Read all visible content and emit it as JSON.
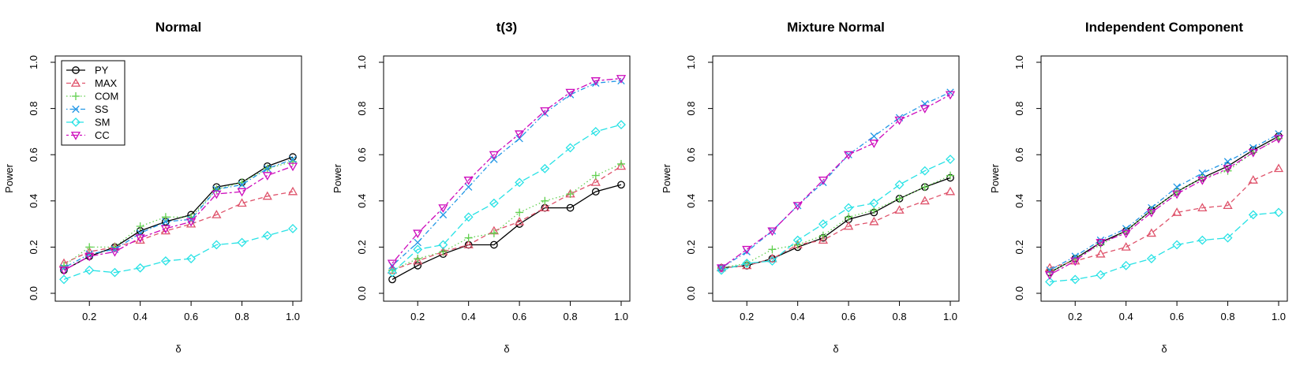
{
  "chart_data": [
    {
      "type": "line",
      "title": "Normal",
      "xlabel": "δ",
      "ylabel": "Power",
      "xlim": [
        0.1,
        1.0
      ],
      "ylim": [
        0.0,
        1.0
      ],
      "x_ticks": [
        "0.2",
        "0.4",
        "0.6",
        "0.8",
        "1.0"
      ],
      "y_ticks": [
        "0.0",
        "0.2",
        "0.4",
        "0.6",
        "0.8",
        "1.0"
      ],
      "x": [
        0.1,
        0.2,
        0.3,
        0.4,
        0.5,
        0.6,
        0.7,
        0.8,
        0.9,
        1.0
      ],
      "legend": "top-left",
      "series": [
        {
          "name": "PY",
          "color": "#000000",
          "marker": "circle",
          "dash": "solid",
          "values": [
            0.1,
            0.16,
            0.2,
            0.27,
            0.31,
            0.34,
            0.46,
            0.48,
            0.55,
            0.59
          ]
        },
        {
          "name": "MAX",
          "color": "#DF536B",
          "marker": "triangle",
          "dash": "dashed",
          "values": [
            0.13,
            0.18,
            0.2,
            0.23,
            0.27,
            0.3,
            0.34,
            0.39,
            0.42,
            0.44
          ]
        },
        {
          "name": "COM",
          "color": "#61D04F",
          "marker": "plus",
          "dash": "dotted",
          "values": [
            0.12,
            0.2,
            0.2,
            0.29,
            0.33,
            0.33,
            0.45,
            0.48,
            0.54,
            0.57
          ]
        },
        {
          "name": "SS",
          "color": "#2297E6",
          "marker": "cross",
          "dash": "dotdash",
          "values": [
            0.11,
            0.17,
            0.19,
            0.26,
            0.31,
            0.32,
            0.45,
            0.47,
            0.54,
            0.58
          ]
        },
        {
          "name": "SM",
          "color": "#28E2E5",
          "marker": "diamond",
          "dash": "longdash",
          "values": [
            0.06,
            0.1,
            0.09,
            0.11,
            0.14,
            0.15,
            0.21,
            0.22,
            0.25,
            0.28
          ]
        },
        {
          "name": "CC",
          "color": "#CD0BBC",
          "marker": "triangle-down",
          "dash": "twodash",
          "values": [
            0.1,
            0.16,
            0.18,
            0.24,
            0.28,
            0.31,
            0.43,
            0.44,
            0.51,
            0.55
          ]
        }
      ]
    },
    {
      "type": "line",
      "title": "t(3)",
      "xlabel": "δ",
      "ylabel": "Power",
      "xlim": [
        0.1,
        1.0
      ],
      "ylim": [
        0.0,
        1.0
      ],
      "x_ticks": [
        "0.2",
        "0.4",
        "0.6",
        "0.8",
        "1.0"
      ],
      "y_ticks": [
        "0.0",
        "0.2",
        "0.4",
        "0.6",
        "0.8",
        "1.0"
      ],
      "x": [
        0.1,
        0.2,
        0.3,
        0.4,
        0.5,
        0.6,
        0.7,
        0.8,
        0.9,
        1.0
      ],
      "series": [
        {
          "name": "PY",
          "color": "#000000",
          "marker": "circle",
          "dash": "solid",
          "values": [
            0.06,
            0.12,
            0.17,
            0.21,
            0.21,
            0.3,
            0.37,
            0.37,
            0.44,
            0.47
          ]
        },
        {
          "name": "MAX",
          "color": "#DF536B",
          "marker": "triangle",
          "dash": "dashed",
          "values": [
            0.1,
            0.14,
            0.18,
            0.21,
            0.27,
            0.31,
            0.37,
            0.43,
            0.48,
            0.55
          ]
        },
        {
          "name": "COM",
          "color": "#61D04F",
          "marker": "plus",
          "dash": "dotted",
          "values": [
            0.1,
            0.15,
            0.18,
            0.24,
            0.26,
            0.35,
            0.4,
            0.43,
            0.51,
            0.56
          ]
        },
        {
          "name": "SS",
          "color": "#2297E6",
          "marker": "cross",
          "dash": "dotdash",
          "values": [
            0.12,
            0.22,
            0.34,
            0.46,
            0.58,
            0.67,
            0.78,
            0.86,
            0.91,
            0.92
          ]
        },
        {
          "name": "SM",
          "color": "#28E2E5",
          "marker": "diamond",
          "dash": "longdash",
          "values": [
            0.09,
            0.19,
            0.21,
            0.33,
            0.39,
            0.48,
            0.54,
            0.63,
            0.7,
            0.73
          ]
        },
        {
          "name": "CC",
          "color": "#CD0BBC",
          "marker": "triangle-down",
          "dash": "twodash",
          "values": [
            0.13,
            0.26,
            0.37,
            0.49,
            0.6,
            0.69,
            0.79,
            0.87,
            0.92,
            0.93
          ]
        }
      ]
    },
    {
      "type": "line",
      "title": "Mixture Normal",
      "xlabel": "δ",
      "ylabel": "Power",
      "xlim": [
        0.1,
        1.0
      ],
      "ylim": [
        0.0,
        1.0
      ],
      "x_ticks": [
        "0.2",
        "0.4",
        "0.6",
        "0.8",
        "1.0"
      ],
      "y_ticks": [
        "0.0",
        "0.2",
        "0.4",
        "0.6",
        "0.8",
        "1.0"
      ],
      "x": [
        0.1,
        0.2,
        0.3,
        0.4,
        0.5,
        0.6,
        0.7,
        0.8,
        0.9,
        1.0
      ],
      "series": [
        {
          "name": "PY",
          "color": "#000000",
          "marker": "circle",
          "dash": "solid",
          "values": [
            0.11,
            0.12,
            0.15,
            0.2,
            0.24,
            0.32,
            0.35,
            0.41,
            0.46,
            0.5
          ]
        },
        {
          "name": "MAX",
          "color": "#DF536B",
          "marker": "triangle",
          "dash": "dashed",
          "values": [
            0.11,
            0.12,
            0.15,
            0.21,
            0.23,
            0.29,
            0.31,
            0.36,
            0.4,
            0.44
          ]
        },
        {
          "name": "COM",
          "color": "#61D04F",
          "marker": "plus",
          "dash": "dotted",
          "values": [
            0.11,
            0.13,
            0.19,
            0.21,
            0.25,
            0.33,
            0.36,
            0.41,
            0.46,
            0.51
          ]
        },
        {
          "name": "SS",
          "color": "#2297E6",
          "marker": "cross",
          "dash": "dotdash",
          "values": [
            0.11,
            0.18,
            0.27,
            0.38,
            0.48,
            0.6,
            0.68,
            0.76,
            0.82,
            0.87
          ]
        },
        {
          "name": "SM",
          "color": "#28E2E5",
          "marker": "diamond",
          "dash": "longdash",
          "values": [
            0.1,
            0.13,
            0.14,
            0.23,
            0.3,
            0.37,
            0.39,
            0.47,
            0.53,
            0.58
          ]
        },
        {
          "name": "CC",
          "color": "#CD0BBC",
          "marker": "triangle-down",
          "dash": "twodash",
          "values": [
            0.11,
            0.19,
            0.27,
            0.38,
            0.49,
            0.6,
            0.65,
            0.75,
            0.8,
            0.86
          ]
        }
      ]
    },
    {
      "type": "line",
      "title": "Independent Component",
      "xlabel": "δ",
      "ylabel": "Power",
      "xlim": [
        0.1,
        1.0
      ],
      "ylim": [
        0.0,
        1.0
      ],
      "x_ticks": [
        "0.2",
        "0.4",
        "0.6",
        "0.8",
        "1.0"
      ],
      "y_ticks": [
        "0.0",
        "0.2",
        "0.4",
        "0.6",
        "0.8",
        "1.0"
      ],
      "x": [
        0.1,
        0.2,
        0.3,
        0.4,
        0.5,
        0.6,
        0.7,
        0.8,
        0.9,
        1.0
      ],
      "series": [
        {
          "name": "PY",
          "color": "#000000",
          "marker": "circle",
          "dash": "solid",
          "values": [
            0.09,
            0.15,
            0.22,
            0.27,
            0.36,
            0.44,
            0.5,
            0.55,
            0.62,
            0.68
          ]
        },
        {
          "name": "MAX",
          "color": "#DF536B",
          "marker": "triangle",
          "dash": "dashed",
          "values": [
            0.11,
            0.14,
            0.17,
            0.2,
            0.26,
            0.35,
            0.37,
            0.38,
            0.49,
            0.54
          ]
        },
        {
          "name": "COM",
          "color": "#61D04F",
          "marker": "plus",
          "dash": "dotted",
          "values": [
            0.09,
            0.15,
            0.21,
            0.27,
            0.36,
            0.44,
            0.5,
            0.53,
            0.61,
            0.67
          ]
        },
        {
          "name": "SS",
          "color": "#2297E6",
          "marker": "cross",
          "dash": "dotdash",
          "values": [
            0.1,
            0.16,
            0.23,
            0.28,
            0.37,
            0.46,
            0.52,
            0.57,
            0.63,
            0.69
          ]
        },
        {
          "name": "SM",
          "color": "#28E2E5",
          "marker": "diamond",
          "dash": "longdash",
          "values": [
            0.05,
            0.06,
            0.08,
            0.12,
            0.15,
            0.21,
            0.23,
            0.24,
            0.34,
            0.35
          ]
        },
        {
          "name": "CC",
          "color": "#CD0BBC",
          "marker": "triangle-down",
          "dash": "twodash",
          "values": [
            0.08,
            0.14,
            0.22,
            0.26,
            0.35,
            0.43,
            0.49,
            0.54,
            0.61,
            0.67
          ]
        }
      ]
    }
  ]
}
